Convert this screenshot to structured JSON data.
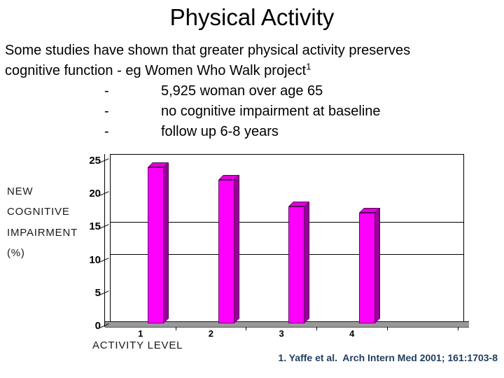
{
  "slide": {
    "title": "Physical Activity",
    "intro_line1": "Some studies have shown that greater physical activity preserves",
    "intro_line2": "cognitive function - eg Women Who Walk project",
    "superscript": "1",
    "bullet_marker": "-",
    "bullets": [
      "5,925 woman over age 65",
      "no cognitive impairment at baseline",
      "follow up 6-8 years"
    ],
    "footer_citation": "1. Yaffe et al.  Arch Intern Med 2001; 161:1703-8",
    "footer_color": "#1f3c5f"
  },
  "chart_data": {
    "type": "bar",
    "style": "3d-column",
    "categories": [
      "1",
      "2",
      "3",
      "4"
    ],
    "values": [
      24,
      22,
      18,
      17
    ],
    "xlabel": "ACTIVITY LEVEL",
    "ylabel_lines": [
      "NEW",
      "COGNITIVE",
      "IMPAIRMENT",
      "(%)"
    ],
    "yticks": [
      0,
      5,
      10,
      15,
      20,
      25
    ],
    "ylim": [
      0,
      25
    ],
    "gridlines_at": [
      10,
      15
    ],
    "legend": "none",
    "bar_color": "#ff00ff",
    "bar_side_color": "#990099",
    "bar_top_color": "#e000e0",
    "floor_color": "#999999"
  }
}
